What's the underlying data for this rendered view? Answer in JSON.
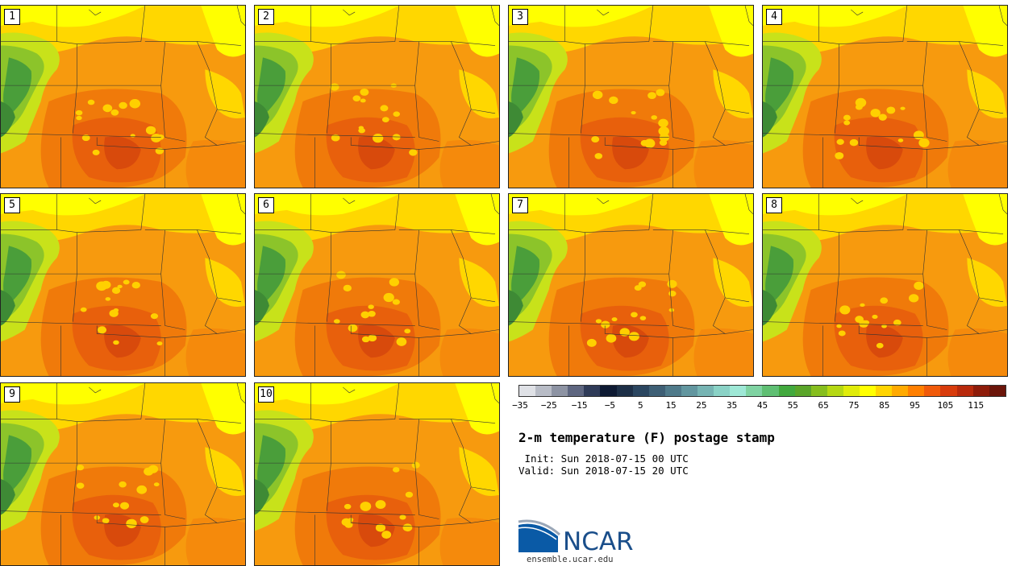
{
  "title": "2-m temperature (F) postage stamp",
  "init": " Init: Sun 2018-07-15 00 UTC",
  "valid": "Valid: Sun 2018-07-15 20 UTC",
  "panels": [
    "1",
    "2",
    "3",
    "4",
    "5",
    "6",
    "7",
    "8",
    "9",
    "10"
  ],
  "colorbar": {
    "ticks": [
      "−35",
      "−25",
      "−15",
      "−5",
      "5",
      "15",
      "25",
      "35",
      "45",
      "55",
      "65",
      "75",
      "85",
      "95",
      "105",
      "115"
    ],
    "colors": [
      "#dfe1e6",
      "#b8bcc6",
      "#8d93a3",
      "#5e6680",
      "#2f3b58",
      "#0e1a33",
      "#1d2f47",
      "#2b4660",
      "#3e5f75",
      "#4f7a8a",
      "#62969f",
      "#76b4b3",
      "#8ad2c6",
      "#9ee8d6",
      "#7fd3a2",
      "#5fbf73",
      "#42a93e",
      "#5aa52a",
      "#86be1e",
      "#b5d813",
      "#e0ec0a",
      "#ffff00",
      "#ffd400",
      "#ffaa00",
      "#ff7f00",
      "#f05a0a",
      "#d83c0c",
      "#b82a0c",
      "#8e1c0a",
      "#6b150a"
    ]
  },
  "logo_text": "NCAR",
  "website": "ensemble.ucar.edu"
}
